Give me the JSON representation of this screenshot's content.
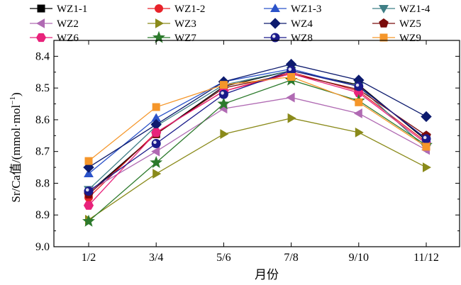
{
  "chart_data": {
    "type": "line",
    "title": "",
    "xlabel": "月份",
    "ylabel_parts": {
      "main": "Sr/Ca值/(mmol·mol",
      "sup": "−1",
      "end": ")"
    },
    "categories": [
      "1/2",
      "3/4",
      "5/6",
      "7/8",
      "9/10",
      "11/12"
    ],
    "ylim": [
      8.35,
      9.0
    ],
    "y_inverted": true,
    "y_ticks": [
      "8.4",
      "8.5",
      "8.6",
      "8.7",
      "8.8",
      "8.9",
      "9.0"
    ],
    "legend_position": "top",
    "series": [
      {
        "name": "WZ1-1",
        "color": "#000000",
        "marker": "square",
        "values": [
          8.83,
          8.645,
          8.495,
          8.445,
          8.49,
          8.665
        ]
      },
      {
        "name": "WZ1-2",
        "color": "#e8232a",
        "marker": "circle",
        "values": [
          8.845,
          8.64,
          8.51,
          8.45,
          8.51,
          8.67
        ]
      },
      {
        "name": "WZ1-3",
        "color": "#2b53c9",
        "marker": "triangle-up",
        "values": [
          8.77,
          8.595,
          8.48,
          8.44,
          8.495,
          8.66
        ]
      },
      {
        "name": "WZ1-4",
        "color": "#3f7f86",
        "marker": "triangle-down",
        "values": [
          8.82,
          8.62,
          8.49,
          8.445,
          8.495,
          8.69
        ]
      },
      {
        "name": "WZ2",
        "color": "#b06ab3",
        "marker": "triangle-left",
        "values": [
          8.825,
          8.7,
          8.565,
          8.53,
          8.58,
          8.695
        ]
      },
      {
        "name": "WZ3",
        "color": "#8a8a1a",
        "marker": "triangle-right",
        "values": [
          8.915,
          8.77,
          8.645,
          8.595,
          8.64,
          8.75
        ]
      },
      {
        "name": "WZ4",
        "color": "#0d1b6e",
        "marker": "diamond",
        "values": [
          8.75,
          8.615,
          8.48,
          8.425,
          8.475,
          8.59
        ]
      },
      {
        "name": "WZ5",
        "color": "#7a0b0b",
        "marker": "pentagon",
        "values": [
          8.835,
          8.645,
          8.5,
          8.455,
          8.505,
          8.65
        ]
      },
      {
        "name": "WZ6",
        "color": "#e8237b",
        "marker": "hexagon",
        "values": [
          8.87,
          8.64,
          8.51,
          8.455,
          8.515,
          8.675
        ]
      },
      {
        "name": "WZ7",
        "color": "#2c7a2c",
        "marker": "star",
        "values": [
          8.92,
          8.735,
          8.55,
          8.475,
          8.54,
          8.68
        ]
      },
      {
        "name": "WZ8",
        "color": "#1a1a8a",
        "marker": "sphere",
        "values": [
          8.825,
          8.675,
          8.52,
          8.445,
          8.495,
          8.66
        ]
      },
      {
        "name": "WZ9",
        "color": "#f5962a",
        "marker": "square",
        "values": [
          8.73,
          8.56,
          8.49,
          8.465,
          8.545,
          8.685
        ]
      }
    ]
  }
}
